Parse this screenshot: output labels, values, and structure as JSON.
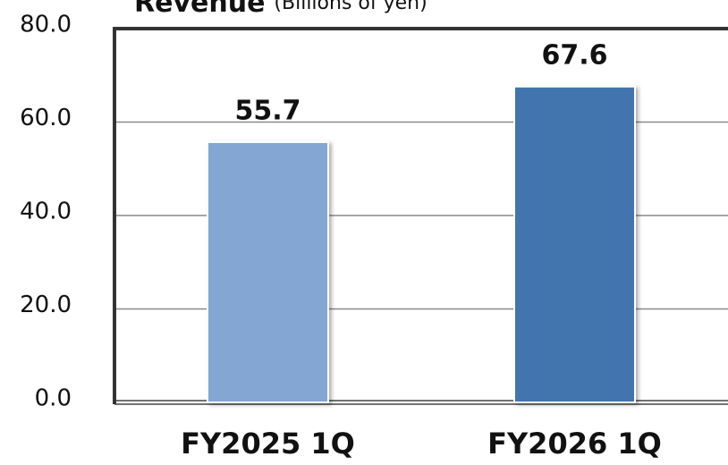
{
  "chart_data": {
    "type": "bar",
    "title": "Revenue",
    "subtitle": "(Billions of yen)",
    "categories": [
      "FY2025 1Q",
      "FY2026 1Q"
    ],
    "values": [
      55.7,
      67.6
    ],
    "colors": [
      "#84a6d2",
      "#4374ae"
    ],
    "ylim": [
      0,
      80
    ],
    "yticks": [
      {
        "value": 0,
        "label": "0.0"
      },
      {
        "value": 20,
        "label": "20.0"
      },
      {
        "value": 40,
        "label": "40.0"
      },
      {
        "value": 60,
        "label": "60.0"
      },
      {
        "value": 80,
        "label": "80.0"
      }
    ],
    "grid": true
  }
}
